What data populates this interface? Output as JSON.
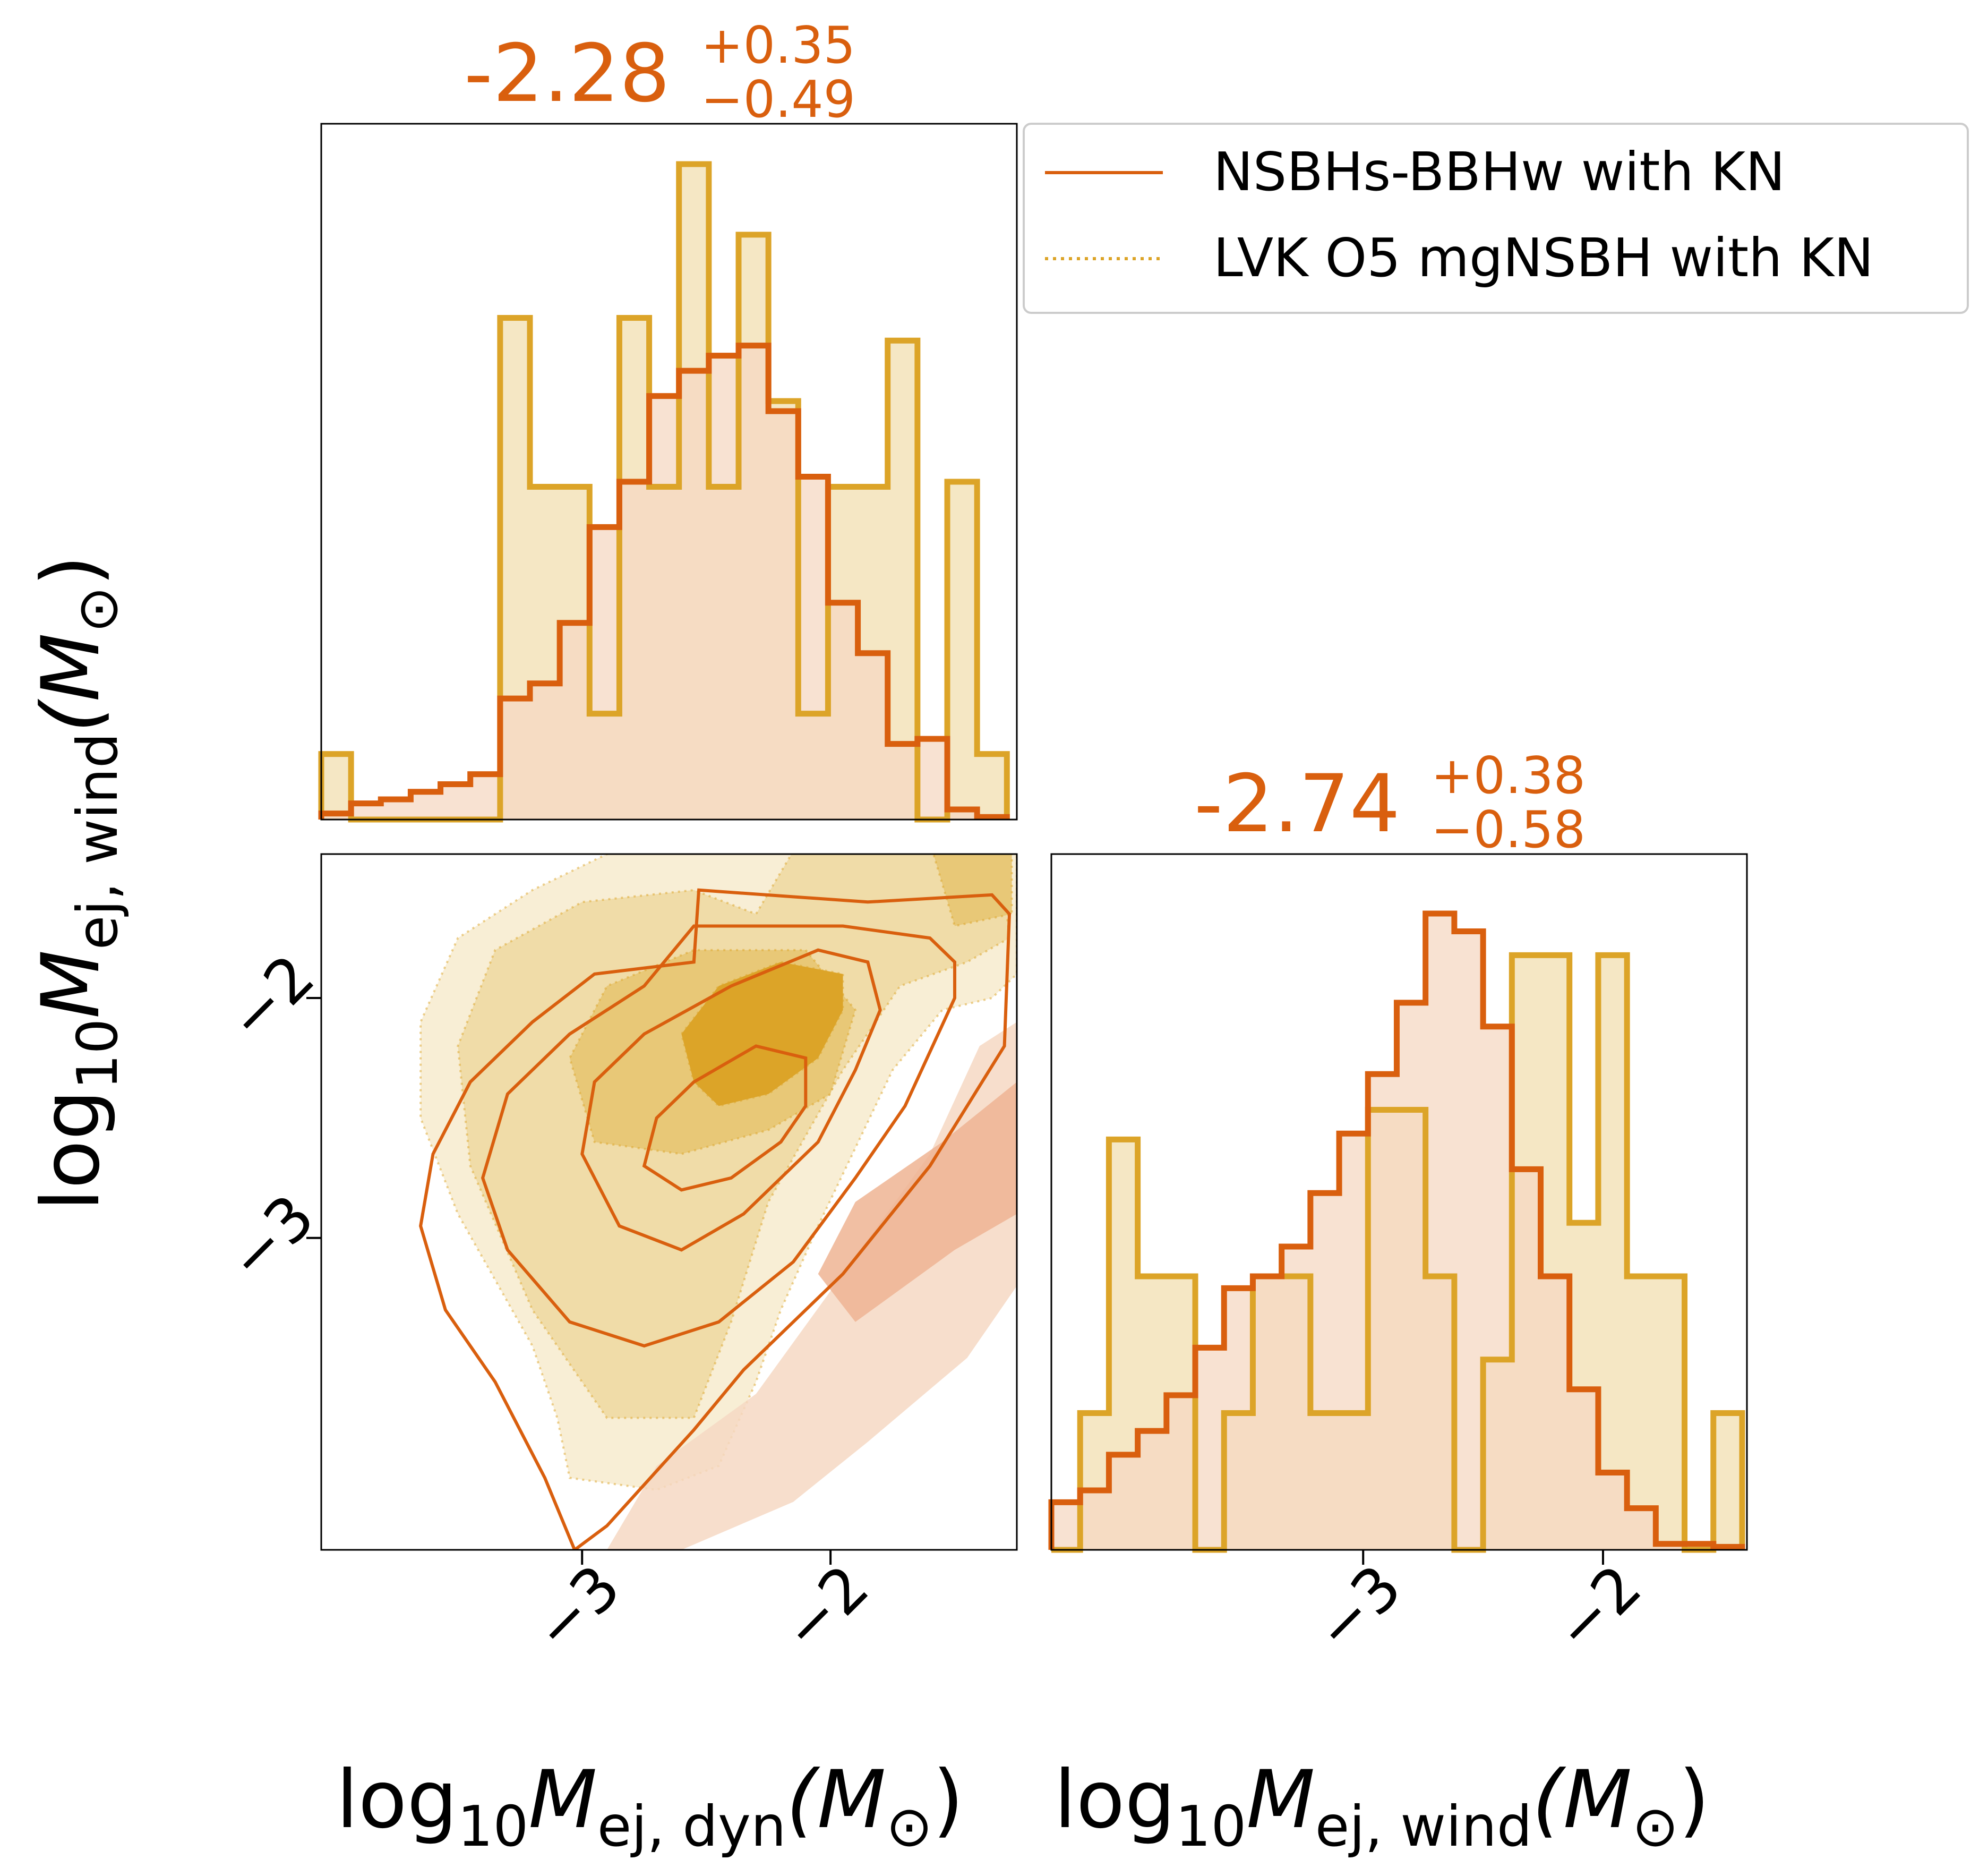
{
  "colors": {
    "nsbh": "#d95f0e",
    "lvk": "#dca428",
    "nsbh_fill": "#f6d8c3",
    "lvk_fill": "#f5e7c4",
    "overlap_fill": "#eec99a",
    "axis": "#000000"
  },
  "legend": {
    "entries": [
      {
        "label": "NSBHs-BBHw with KN",
        "style": "solid",
        "color": "#d95f0e"
      },
      {
        "label": "LVK O5 mgNSBH with KN",
        "style": "dotted",
        "color": "#dca428"
      }
    ]
  },
  "chart_data": {
    "type": "corner",
    "parameters": [
      {
        "name": "log10_M_ej_dyn",
        "label_base": "log",
        "label_sub": "10",
        "label_M": "M",
        "label_msub": "ej, dyn",
        "label_unit": "(M",
        "label_unit_sub": "⊙",
        "label_close": ")",
        "range": [
          -4.05,
          -1.25
        ]
      },
      {
        "name": "log10_M_ej_wind",
        "label_base": "log",
        "label_sub": "10",
        "label_M": "M",
        "label_msub": "ej, wind",
        "label_unit": "(M",
        "label_unit_sub": "⊙",
        "label_close": ")",
        "range": [
          -4.3,
          -1.4
        ]
      }
    ],
    "titles": [
      {
        "median": "-2.28",
        "plus": "+0.35",
        "minus": "−0.49"
      },
      {
        "median": "-2.74",
        "plus": "+0.38",
        "minus": "−0.58"
      }
    ],
    "ticks": {
      "x_dyn": [
        {
          "value": -3,
          "label": "−3"
        },
        {
          "value": -2,
          "label": "−2"
        }
      ],
      "x_wind": [
        {
          "value": -3,
          "label": "−3"
        },
        {
          "value": -2,
          "label": "−2"
        }
      ],
      "y_wind": [
        {
          "value": -2,
          "label": "−2"
        },
        {
          "value": -3,
          "label": "−3"
        }
      ]
    },
    "histograms": {
      "dyn": {
        "edges": [
          -4.05,
          -3.93,
          -3.81,
          -3.69,
          -3.57,
          -3.45,
          -3.33,
          -3.21,
          -3.09,
          -2.97,
          -2.85,
          -2.73,
          -2.61,
          -2.49,
          -2.37,
          -2.25,
          -2.13,
          -2.01,
          -1.89,
          -1.77,
          -1.65,
          -1.53,
          -1.41,
          -1.29
        ],
        "series": [
          {
            "name": "NSBHs-BBHw with KN",
            "color": "#d95f0e",
            "values": [
              0.012,
              0.032,
              0.04,
              0.055,
              0.07,
              0.09,
              0.24,
              0.27,
              0.39,
              0.58,
              0.67,
              0.84,
              0.89,
              0.92,
              0.94,
              0.81,
              0.68,
              0.43,
              0.33,
              0.15,
              0.16,
              0.02,
              0.005
            ]
          },
          {
            "name": "LVK O5 mgNSBH with KN",
            "color": "#dca428",
            "values": [
              0.13,
              0,
              0,
              0,
              0,
              0,
              0.995,
              0.66,
              0.66,
              0.21,
              0.995,
              0.66,
              1.3,
              0.66,
              1.16,
              0.83,
              0.21,
              0.66,
              0.66,
              0.95,
              0,
              0.67,
              0.13
            ]
          }
        ],
        "ymax": 1.38
      },
      "wind": {
        "edges": [
          -4.3,
          -4.18,
          -4.06,
          -3.94,
          -3.82,
          -3.7,
          -3.58,
          -3.46,
          -3.34,
          -3.22,
          -3.1,
          -2.98,
          -2.86,
          -2.74,
          -2.62,
          -2.5,
          -2.38,
          -2.26,
          -2.14,
          -2.02,
          -1.9,
          -1.78,
          -1.66,
          -1.54,
          -1.42
        ],
        "series": [
          {
            "name": "NSBHs-BBHw with KN",
            "color": "#d95f0e",
            "values": [
              0.08,
              0.1,
              0.16,
              0.2,
              0.26,
              0.34,
              0.44,
              0.46,
              0.51,
              0.6,
              0.7,
              0.8,
              0.92,
              1.07,
              1.04,
              0.88,
              0.64,
              0.46,
              0.27,
              0.13,
              0.07,
              0.01,
              0.01,
              0.005
            ]
          },
          {
            "name": "LVK O5 mgNSBH with KN",
            "color": "#dca428",
            "values": [
              0,
              0.23,
              0.69,
              0.46,
              0.46,
              0,
              0.23,
              0.46,
              0.46,
              0.23,
              0.23,
              0.74,
              0.74,
              0.46,
              0.0,
              0.32,
              1.0,
              1.0,
              0.55,
              1.0,
              0.46,
              0.46,
              0,
              0.23
            ]
          }
        ],
        "ymax": 1.17
      }
    },
    "contours": [
      {
        "name": "LVK O5 mgNSBH with KN",
        "style": "filled-dotted",
        "color": "#dca428",
        "levels": [
          {
            "fill": "#f8eed5",
            "points": [
              [
                -2.12,
                -1.05
              ],
              [
                -1.6,
                -1.05
              ],
              [
                -1.35,
                -1.1
              ],
              [
                -1.25,
                -1.25
              ],
              [
                -1.25,
                -1.9
              ],
              [
                -1.35,
                -2.0
              ],
              [
                -1.55,
                -2.05
              ],
              [
                -1.75,
                -2.3
              ],
              [
                -2.05,
                -2.95
              ],
              [
                -2.2,
                -3.3
              ],
              [
                -2.3,
                -3.6
              ],
              [
                -2.45,
                -3.95
              ],
              [
                -2.7,
                -4.05
              ],
              [
                -3.05,
                -4.0
              ],
              [
                -3.1,
                -3.75
              ],
              [
                -3.2,
                -3.45
              ],
              [
                -3.5,
                -2.9
              ],
              [
                -3.65,
                -2.5
              ],
              [
                -3.65,
                -2.1
              ],
              [
                -3.5,
                -1.75
              ],
              [
                -3.2,
                -1.55
              ],
              [
                -2.9,
                -1.4
              ],
              [
                -2.55,
                -1.35
              ],
              [
                -2.35,
                -1.3
              ]
            ]
          },
          {
            "fill": "#f0dca8",
            "points": [
              [
                -1.8,
                -1.1
              ],
              [
                -1.45,
                -1.15
              ],
              [
                -1.32,
                -1.35
              ],
              [
                -1.28,
                -1.75
              ],
              [
                -1.45,
                -1.85
              ],
              [
                -1.72,
                -1.95
              ],
              [
                -1.95,
                -2.3
              ],
              [
                -2.25,
                -2.85
              ],
              [
                -2.4,
                -3.35
              ],
              [
                -2.55,
                -3.75
              ],
              [
                -2.9,
                -3.75
              ],
              [
                -3.2,
                -3.3
              ],
              [
                -3.45,
                -2.7
              ],
              [
                -3.5,
                -2.2
              ],
              [
                -3.35,
                -1.8
              ],
              [
                -3.0,
                -1.6
              ],
              [
                -2.55,
                -1.55
              ],
              [
                -2.3,
                -1.65
              ],
              [
                -2.1,
                -1.3
              ]
            ]
          },
          {
            "fill": "#e8c877",
            "points": [
              [
                -1.6,
                -1.1
              ],
              [
                -1.27,
                -1.05
              ],
              [
                -1.27,
                -1.65
              ],
              [
                -1.5,
                -1.7
              ],
              [
                -1.6,
                -1.35
              ]
            ]
          },
          {
            "fill": "#e8c877",
            "points": [
              [
                -2.1,
                -1.8
              ],
              [
                -1.9,
                -2.05
              ],
              [
                -2.0,
                -2.4
              ],
              [
                -2.25,
                -2.55
              ],
              [
                -2.6,
                -2.65
              ],
              [
                -2.95,
                -2.6
              ],
              [
                -3.05,
                -2.25
              ],
              [
                -2.9,
                -1.95
              ],
              [
                -2.55,
                -1.8
              ]
            ]
          },
          {
            "fill": "#dca428",
            "points": [
              [
                -1.95,
                -1.9
              ],
              [
                -1.95,
                -2.05
              ],
              [
                -2.05,
                -2.25
              ],
              [
                -2.25,
                -2.4
              ],
              [
                -2.45,
                -2.45
              ],
              [
                -2.55,
                -2.35
              ],
              [
                -2.6,
                -2.15
              ],
              [
                -2.45,
                -1.95
              ],
              [
                -2.2,
                -1.85
              ]
            ]
          }
        ]
      },
      {
        "name": "NSBHs-BBHw with KN",
        "style": "filled-solid",
        "color": "#d95f0e",
        "levels": [
          {
            "fill": "#f6d8c3",
            "points": [
              [
                -1.25,
                -2.1
              ],
              [
                -1.25,
                -3.2
              ],
              [
                -1.45,
                -3.5
              ],
              [
                -1.85,
                -3.85
              ],
              [
                -2.15,
                -4.1
              ],
              [
                -2.6,
                -4.3
              ],
              [
                -2.9,
                -4.3
              ],
              [
                -2.7,
                -3.95
              ],
              [
                -2.3,
                -3.65
              ],
              [
                -1.95,
                -3.15
              ],
              [
                -1.6,
                -2.65
              ],
              [
                -1.4,
                -2.2
              ]
            ]
          },
          {
            "fill": "#eeb493",
            "points": [
              [
                -1.25,
                -2.35
              ],
              [
                -1.25,
                -2.9
              ],
              [
                -1.5,
                -3.05
              ],
              [
                -1.9,
                -3.35
              ],
              [
                -2.05,
                -3.15
              ],
              [
                -1.9,
                -2.85
              ],
              [
                -1.55,
                -2.6
              ]
            ]
          }
        ],
        "lines": [
          [
            [
              -2.53,
              -1.55
            ],
            [
              -1.85,
              -1.6
            ],
            [
              -1.35,
              -1.57
            ],
            [
              -1.28,
              -1.65
            ],
            [
              -1.3,
              -2.2
            ],
            [
              -1.6,
              -2.7
            ],
            [
              -1.95,
              -3.15
            ],
            [
              -2.35,
              -3.55
            ],
            [
              -2.55,
              -3.8
            ],
            [
              -2.9,
              -4.2
            ],
            [
              -3.03,
              -4.3
            ],
            [
              -3.15,
              -4.0
            ],
            [
              -3.35,
              -3.6
            ],
            [
              -3.55,
              -3.3
            ],
            [
              -3.65,
              -2.95
            ],
            [
              -3.6,
              -2.65
            ],
            [
              -3.45,
              -2.35
            ],
            [
              -3.2,
              -2.1
            ],
            [
              -2.95,
              -1.9
            ],
            [
              -2.55,
              -1.85
            ]
          ],
          [
            [
              -2.55,
              -1.7
            ],
            [
              -2.15,
              -1.7
            ],
            [
              -1.95,
              -1.7
            ],
            [
              -1.6,
              -1.75
            ],
            [
              -1.5,
              -1.85
            ],
            [
              -1.5,
              -2.0
            ],
            [
              -1.7,
              -2.45
            ],
            [
              -1.9,
              -2.75
            ],
            [
              -2.15,
              -3.1
            ],
            [
              -2.45,
              -3.35
            ],
            [
              -2.75,
              -3.45
            ],
            [
              -3.05,
              -3.35
            ],
            [
              -3.3,
              -3.05
            ],
            [
              -3.4,
              -2.75
            ],
            [
              -3.3,
              -2.4
            ],
            [
              -3.05,
              -2.15
            ],
            [
              -2.75,
              -1.95
            ]
          ],
          [
            [
              -2.05,
              -1.8
            ],
            [
              -1.85,
              -1.85
            ],
            [
              -1.8,
              -2.05
            ],
            [
              -1.9,
              -2.3
            ],
            [
              -2.05,
              -2.6
            ],
            [
              -2.35,
              -2.9
            ],
            [
              -2.6,
              -3.05
            ],
            [
              -2.85,
              -2.95
            ],
            [
              -3.0,
              -2.65
            ],
            [
              -2.95,
              -2.35
            ],
            [
              -2.75,
              -2.15
            ],
            [
              -2.4,
              -1.95
            ]
          ],
          [
            [
              -2.1,
              -2.25
            ],
            [
              -2.1,
              -2.45
            ],
            [
              -2.2,
              -2.6
            ],
            [
              -2.4,
              -2.75
            ],
            [
              -2.6,
              -2.8
            ],
            [
              -2.75,
              -2.7
            ],
            [
              -2.7,
              -2.5
            ],
            [
              -2.55,
              -2.35
            ],
            [
              -2.3,
              -2.2
            ]
          ]
        ]
      }
    ]
  }
}
